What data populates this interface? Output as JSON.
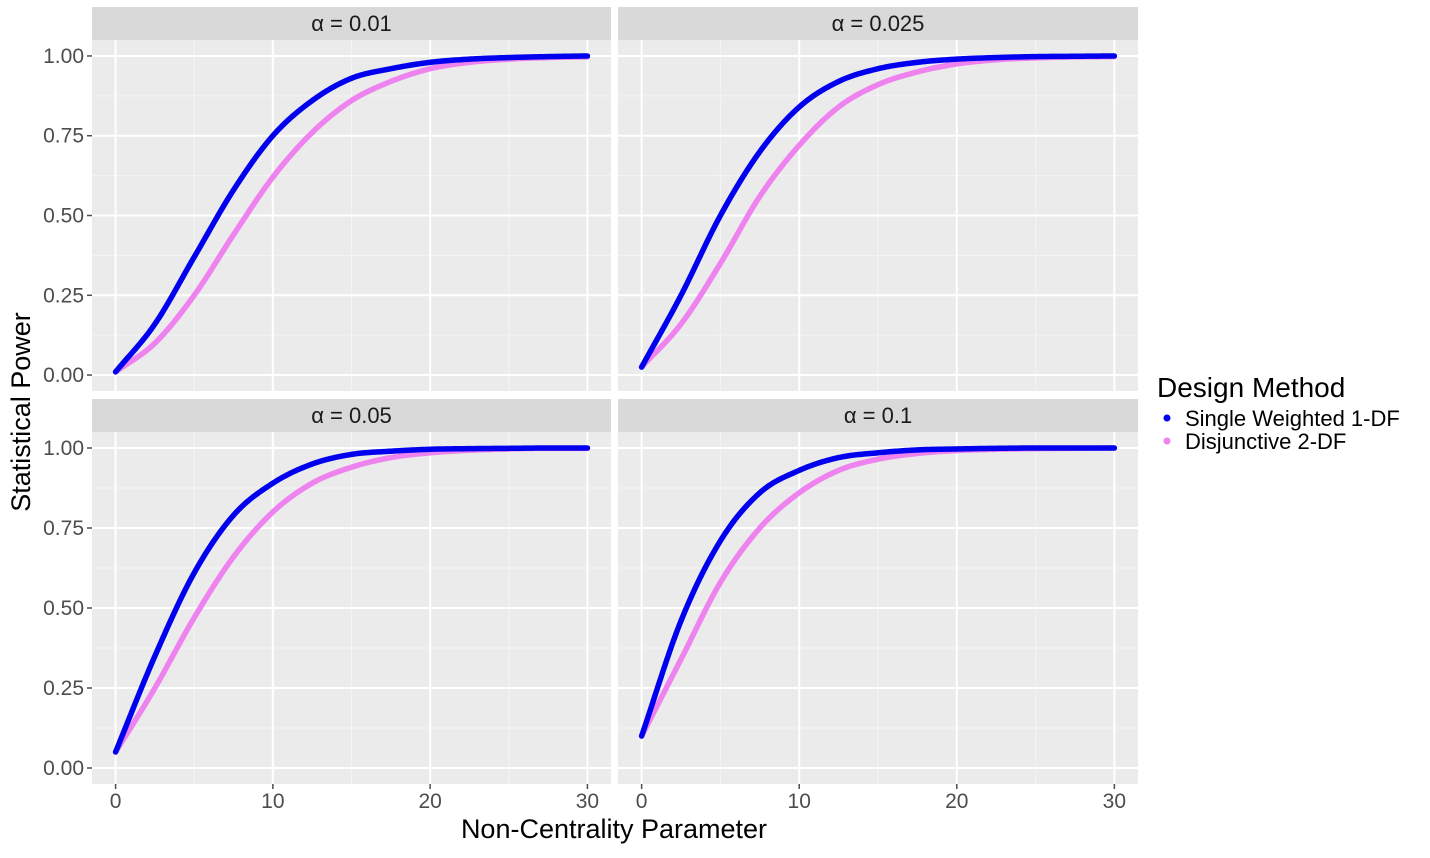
{
  "chart_data": {
    "type": "line",
    "xlabel": "Non-Centrality Parameter",
    "ylabel": "Statistical Power",
    "xlim": [
      -1.5,
      31.5
    ],
    "ylim": [
      -0.05,
      1.05
    ],
    "x_ticks": [
      0,
      10,
      20,
      30
    ],
    "x_tick_labels": [
      "0",
      "10",
      "20",
      "30"
    ],
    "y_ticks": [
      0,
      0.25,
      0.5,
      0.75,
      1.0
    ],
    "y_tick_labels": [
      "0.00",
      "0.25",
      "0.50",
      "0.75",
      "1.00"
    ],
    "grid": true,
    "legend": {
      "title": "Design Method",
      "position": "right",
      "entries": [
        {
          "label": "Single Weighted 1-DF",
          "color": "#0000ee"
        },
        {
          "label": "Disjunctive 2-DF",
          "color": "#ee82ee"
        }
      ]
    },
    "x": [
      0,
      2.5,
      5,
      7.5,
      10,
      12.5,
      15,
      17.5,
      20,
      22.5,
      25,
      27.5,
      30
    ],
    "panels": [
      {
        "label": "α =  0.01",
        "series": [
          {
            "name": "Single Weighted 1-DF",
            "values": [
              0.01,
              0.16,
              0.37,
              0.58,
              0.75,
              0.86,
              0.93,
              0.96,
              0.98,
              0.99,
              0.995,
              0.998,
              1.0
            ]
          },
          {
            "name": "Disjunctive 2-DF",
            "values": [
              0.01,
              0.1,
              0.25,
              0.44,
              0.62,
              0.76,
              0.86,
              0.92,
              0.96,
              0.98,
              0.99,
              0.995,
              0.997
            ]
          }
        ]
      },
      {
        "label": "α =  0.025",
        "series": [
          {
            "name": "Single Weighted 1-DF",
            "values": [
              0.025,
              0.25,
              0.5,
              0.7,
              0.84,
              0.92,
              0.96,
              0.98,
              0.99,
              0.995,
              0.998,
              0.999,
              1.0
            ]
          },
          {
            "name": "Disjunctive 2-DF",
            "values": [
              0.025,
              0.16,
              0.35,
              0.56,
              0.72,
              0.84,
              0.91,
              0.95,
              0.975,
              0.988,
              0.994,
              0.997,
              0.998
            ]
          }
        ]
      },
      {
        "label": "α =  0.05",
        "series": [
          {
            "name": "Single Weighted 1-DF",
            "values": [
              0.05,
              0.35,
              0.61,
              0.79,
              0.89,
              0.95,
              0.98,
              0.99,
              0.996,
              0.998,
              0.999,
              1.0,
              1.0
            ]
          },
          {
            "name": "Disjunctive 2-DF",
            "values": [
              0.05,
              0.25,
              0.47,
              0.66,
              0.8,
              0.89,
              0.94,
              0.97,
              0.985,
              0.993,
              0.997,
              0.999,
              0.999
            ]
          }
        ]
      },
      {
        "label": "α =  0.1",
        "series": [
          {
            "name": "Single Weighted 1-DF",
            "values": [
              0.1,
              0.46,
              0.71,
              0.86,
              0.93,
              0.97,
              0.985,
              0.994,
              0.997,
              0.999,
              1.0,
              1.0,
              1.0
            ]
          },
          {
            "name": "Disjunctive 2-DF",
            "values": [
              0.1,
              0.34,
              0.58,
              0.75,
              0.86,
              0.93,
              0.965,
              0.983,
              0.992,
              0.996,
              0.998,
              0.999,
              1.0
            ]
          }
        ]
      }
    ]
  }
}
